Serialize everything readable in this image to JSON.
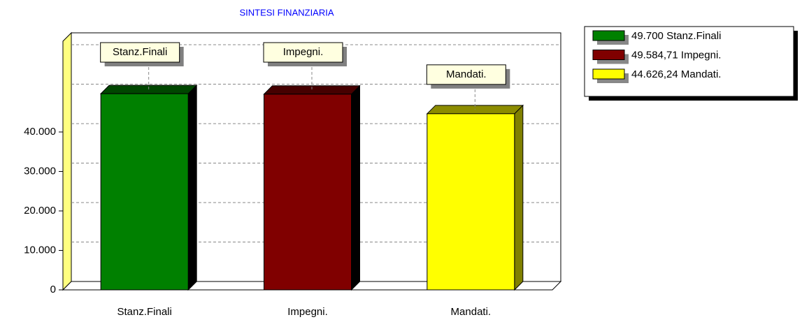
{
  "chart_data": {
    "type": "bar3d",
    "title": "SINTESI FINANZIARIA",
    "categories": [
      "Stanz.Finali",
      "Impegni.",
      "Mandati."
    ],
    "values": [
      49700,
      49584.71,
      44626.24
    ],
    "value_labels": [
      "49.700",
      "49.584,71",
      "44.626,24"
    ],
    "colors": [
      "#008000",
      "#800000",
      "#ffff00"
    ],
    "ylim": [
      0,
      63000
    ],
    "yticks": [
      0,
      {
        "value": 10000,
        "label": "10.000"
      },
      {
        "value": 20000,
        "label": "20.000"
      },
      {
        "value": 30000,
        "label": "30.000"
      },
      {
        "value": 40000,
        "label": "40.000"
      }
    ],
    "ygrid": [
      10000,
      20000,
      30000,
      40000,
      50000,
      60000
    ],
    "grid": true,
    "legend": "top-right"
  }
}
